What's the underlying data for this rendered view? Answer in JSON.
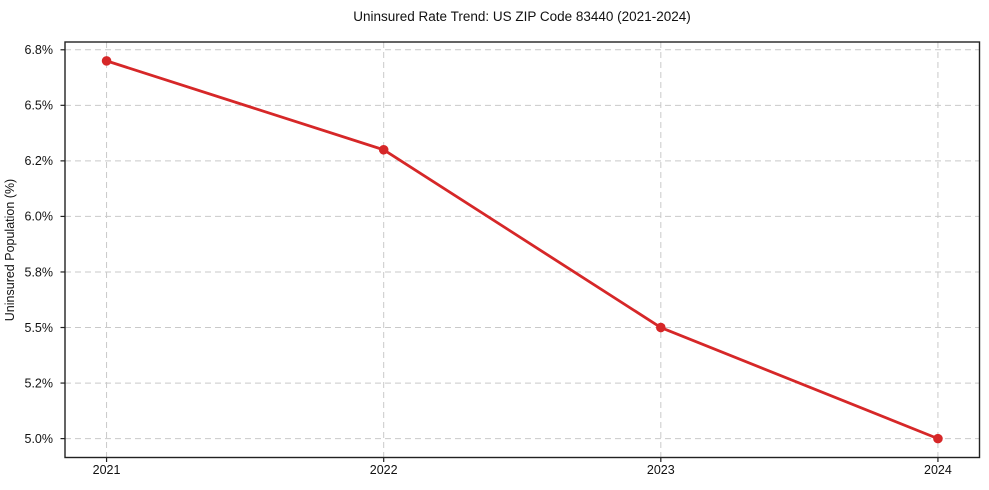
{
  "chart_data": {
    "type": "line",
    "title": "Uninsured Rate Trend: US ZIP Code 83440 (2021-2024)",
    "x": [
      "2021",
      "2022",
      "2023",
      "2024"
    ],
    "values": [
      6.7,
      6.3,
      5.5,
      5.0
    ],
    "unit": "%",
    "xlabel": "",
    "ylabel": "Uninsured Population (%)",
    "ylim": [
      4.915,
      6.785
    ],
    "yticks": [
      6.75,
      6.5,
      6.25,
      6.0,
      5.75,
      5.5,
      5.25,
      5.0
    ],
    "ytick_labels": [
      "6.8%",
      "6.5%",
      "6.2%",
      "6.0%",
      "5.8%",
      "5.5%",
      "5.2%",
      "5.0%"
    ],
    "xtick_labels": [
      "2021",
      "2022",
      "2023",
      "2024"
    ],
    "grid": true,
    "grid_style": "dashed",
    "legend_position": "none",
    "marker": "circle",
    "line_color": "#d62728"
  },
  "colors": {
    "line": "#d62728",
    "grid": "#c9c9c9",
    "spine": "#222222",
    "text": "#111111",
    "background": "#ffffff"
  }
}
